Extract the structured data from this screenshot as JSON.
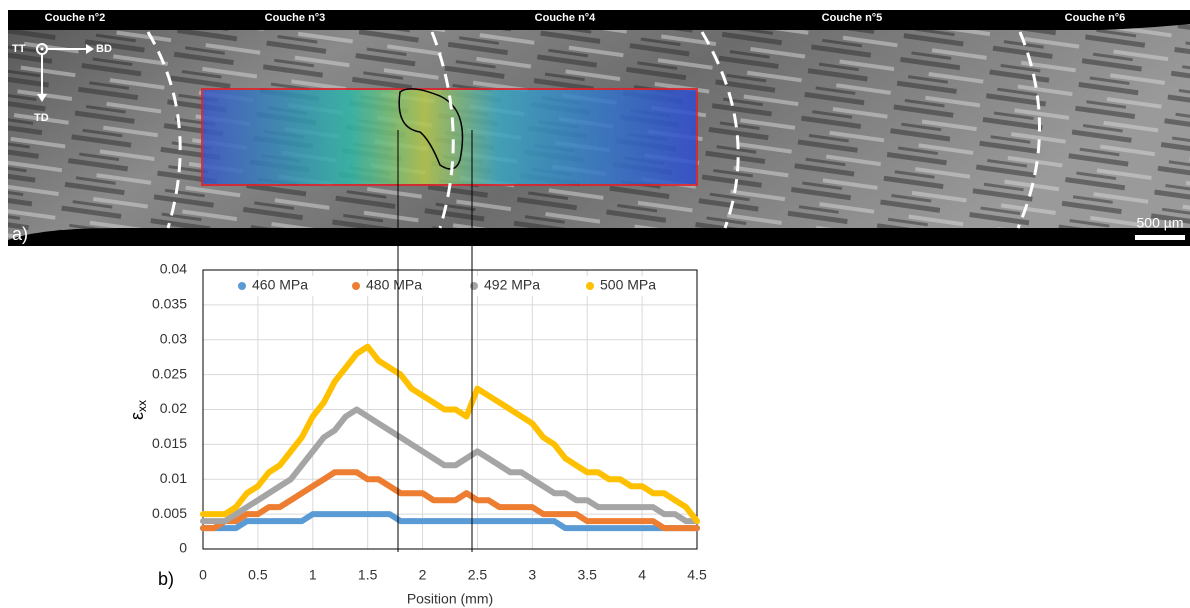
{
  "micrograph": {
    "layers": [
      "Couche n°2",
      "Couche n°3",
      "Couche n°4",
      "Couche n°5",
      "Couche n°6"
    ],
    "axes": {
      "tt": "TT",
      "bd": "BD",
      "td": "TD"
    },
    "panel_label": "a)",
    "scale_bar": "500 µm"
  },
  "chart_data": {
    "type": "line",
    "panel_label": "b)",
    "x_label": "Position (mm)",
    "y_label": "ε",
    "y_label_subscript": "xx",
    "x": [
      0,
      0.1,
      0.2,
      0.3,
      0.4,
      0.5,
      0.6,
      0.7,
      0.8,
      0.9,
      1,
      1.1,
      1.2,
      1.3,
      1.4,
      1.5,
      1.6,
      1.7,
      1.8,
      1.9,
      2,
      2.1,
      2.2,
      2.3,
      2.4,
      2.5,
      2.6,
      2.7,
      2.8,
      2.9,
      3,
      3.1,
      3.2,
      3.3,
      3.4,
      3.5,
      3.6,
      3.7,
      3.8,
      3.9,
      4,
      4.1,
      4.2,
      4.3,
      4.4,
      4.5
    ],
    "series": [
      {
        "name": "460 MPa",
        "color": "#5b9bd5",
        "values": [
          0.003,
          0.003,
          0.003,
          0.003,
          0.004,
          0.004,
          0.004,
          0.004,
          0.004,
          0.004,
          0.005,
          0.005,
          0.005,
          0.005,
          0.005,
          0.005,
          0.005,
          0.005,
          0.004,
          0.004,
          0.004,
          0.004,
          0.004,
          0.004,
          0.004,
          0.004,
          0.004,
          0.004,
          0.004,
          0.004,
          0.004,
          0.004,
          0.004,
          0.003,
          0.003,
          0.003,
          0.003,
          0.003,
          0.003,
          0.003,
          0.003,
          0.003,
          0.003,
          0.003,
          0.003,
          0.003
        ]
      },
      {
        "name": "480 MPa",
        "color": "#ed7d31",
        "values": [
          0.003,
          0.003,
          0.004,
          0.004,
          0.005,
          0.005,
          0.006,
          0.006,
          0.007,
          0.008,
          0.009,
          0.01,
          0.011,
          0.011,
          0.011,
          0.01,
          0.01,
          0.009,
          0.008,
          0.008,
          0.008,
          0.007,
          0.007,
          0.007,
          0.008,
          0.007,
          0.007,
          0.006,
          0.006,
          0.006,
          0.006,
          0.005,
          0.005,
          0.005,
          0.005,
          0.004,
          0.004,
          0.004,
          0.004,
          0.004,
          0.004,
          0.004,
          0.003,
          0.003,
          0.003,
          0.003
        ]
      },
      {
        "name": "492 MPa",
        "color": "#a5a5a5",
        "values": [
          0.004,
          0.004,
          0.004,
          0.005,
          0.006,
          0.007,
          0.008,
          0.009,
          0.01,
          0.012,
          0.014,
          0.016,
          0.017,
          0.019,
          0.02,
          0.019,
          0.018,
          0.017,
          0.016,
          0.015,
          0.014,
          0.013,
          0.012,
          0.012,
          0.013,
          0.014,
          0.013,
          0.012,
          0.011,
          0.011,
          0.01,
          0.009,
          0.008,
          0.008,
          0.007,
          0.007,
          0.006,
          0.006,
          0.006,
          0.006,
          0.006,
          0.006,
          0.005,
          0.005,
          0.004,
          0.004
        ]
      },
      {
        "name": "500 MPa",
        "color": "#ffc000",
        "values": [
          0.005,
          0.005,
          0.005,
          0.006,
          0.008,
          0.009,
          0.011,
          0.012,
          0.014,
          0.016,
          0.019,
          0.021,
          0.024,
          0.026,
          0.028,
          0.029,
          0.027,
          0.026,
          0.025,
          0.023,
          0.022,
          0.021,
          0.02,
          0.02,
          0.019,
          0.023,
          0.022,
          0.021,
          0.02,
          0.019,
          0.018,
          0.016,
          0.015,
          0.013,
          0.012,
          0.011,
          0.011,
          0.01,
          0.01,
          0.009,
          0.009,
          0.008,
          0.008,
          0.007,
          0.006,
          0.004
        ]
      }
    ],
    "xlim": [
      0,
      4.5
    ],
    "ylim": [
      0,
      0.04
    ],
    "xticks": [
      0,
      0.5,
      1,
      1.5,
      2,
      2.5,
      3,
      3.5,
      4,
      4.5
    ],
    "yticks": [
      0,
      0.005,
      0.01,
      0.015,
      0.02,
      0.025,
      0.03,
      0.035,
      0.04
    ],
    "grid": true,
    "legend": "top"
  }
}
